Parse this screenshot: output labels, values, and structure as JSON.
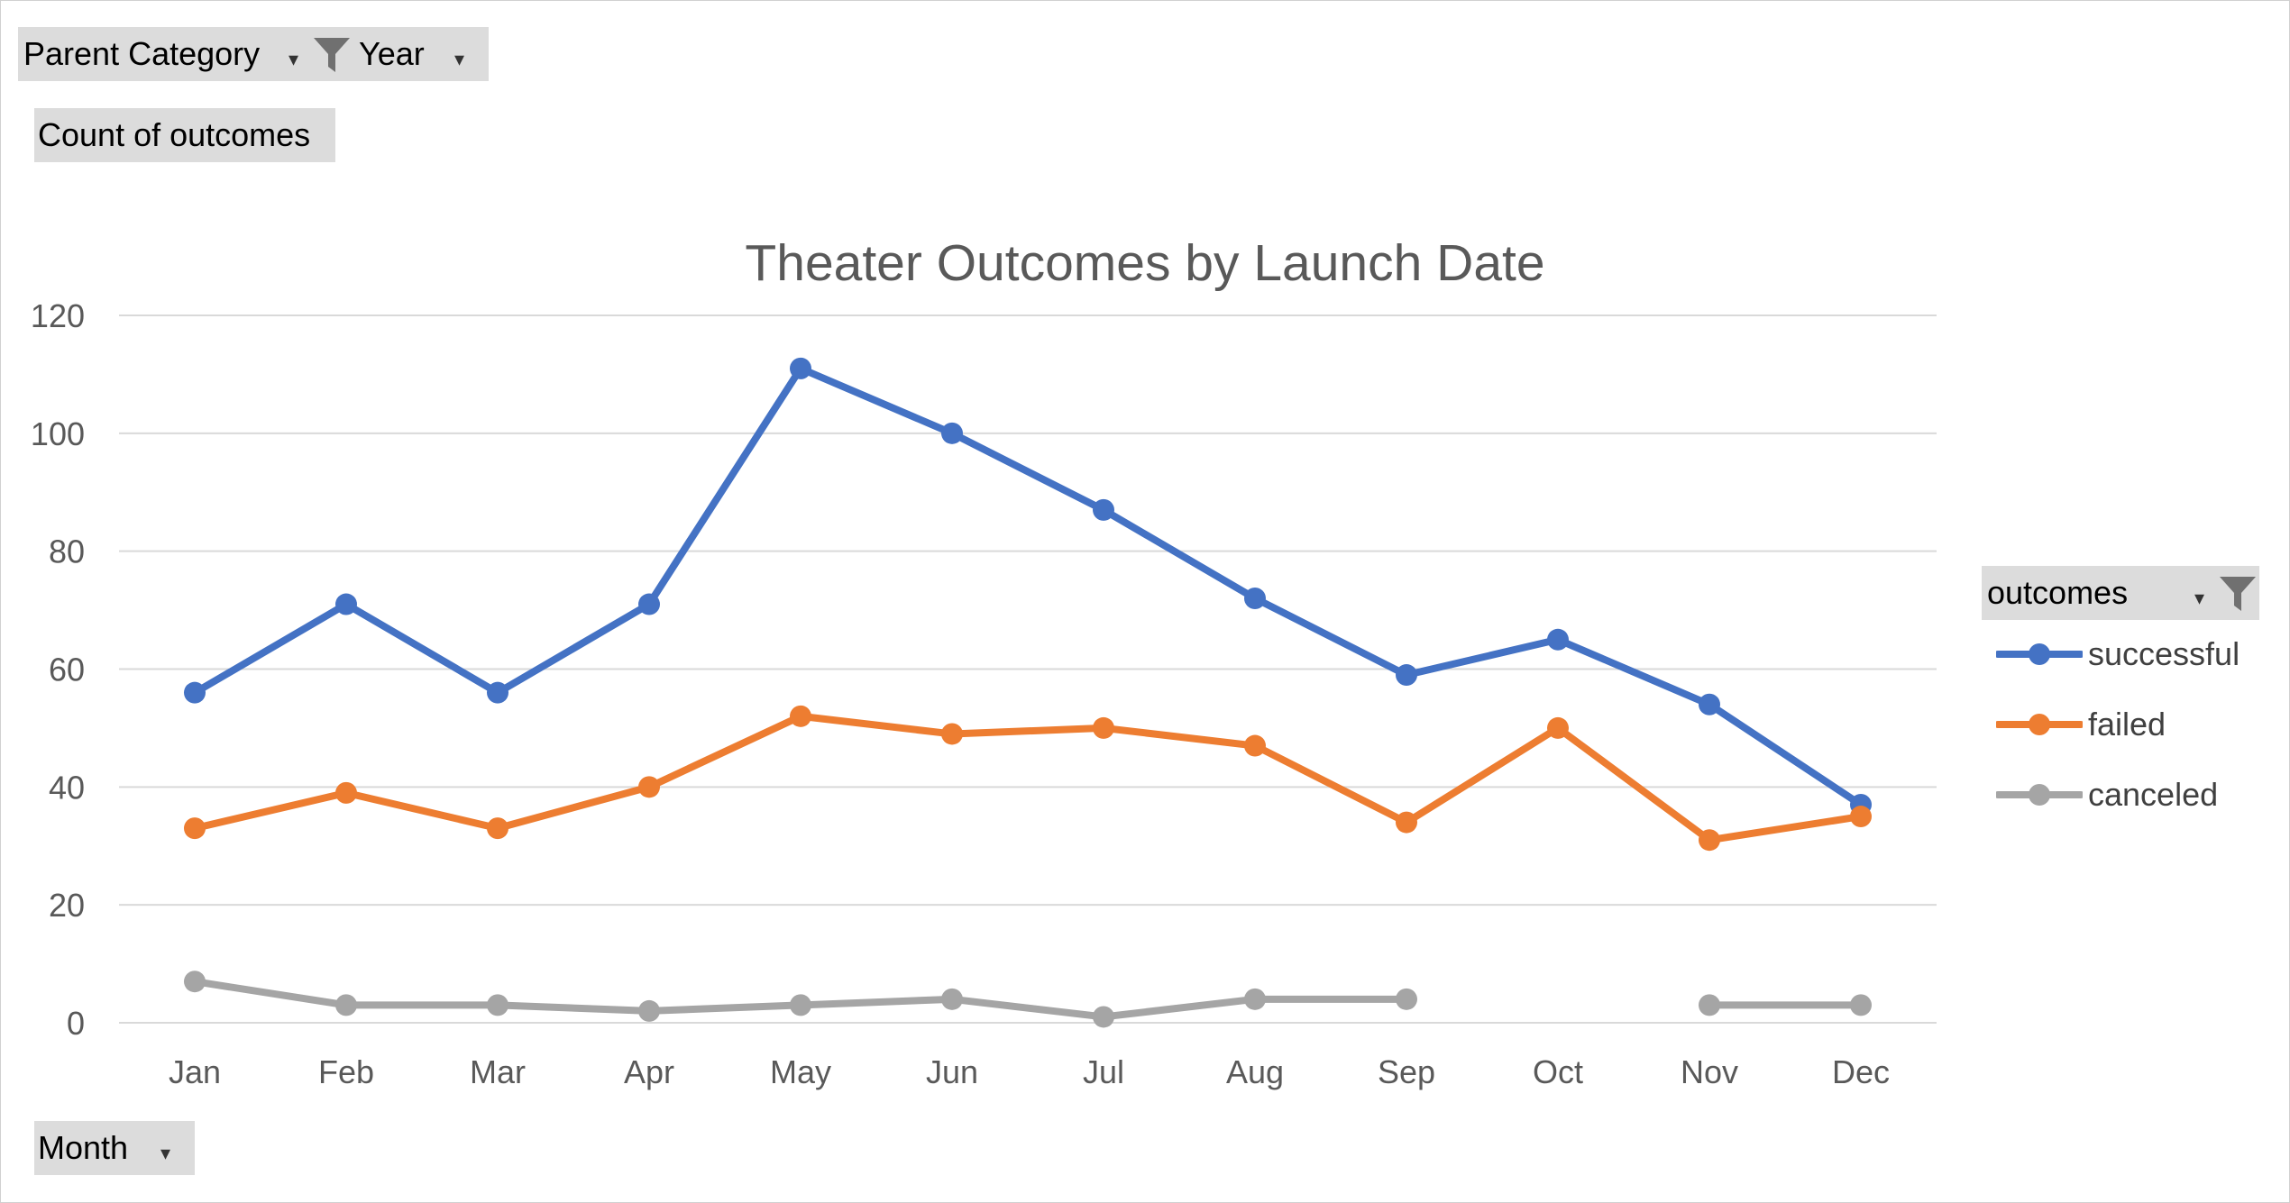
{
  "filters": {
    "parent_category": {
      "label": "Parent Category",
      "filtered": true
    },
    "year": {
      "label": "Year"
    },
    "values_field": {
      "label": "Count of outcomes"
    },
    "axis_field": {
      "label": "Month"
    },
    "legend_field": {
      "label": "outcomes",
      "filtered": true
    }
  },
  "icons": {
    "dropdown": "chevron-down-icon",
    "filter": "funnel-icon"
  },
  "chart_data": {
    "type": "line",
    "title": "Theater Outcomes by Launch Date",
    "categories": [
      "Jan",
      "Feb",
      "Mar",
      "Apr",
      "May",
      "Jun",
      "Jul",
      "Aug",
      "Sep",
      "Oct",
      "Nov",
      "Dec"
    ],
    "ylim": [
      0,
      120
    ],
    "yticks": [
      "0",
      "20",
      "40",
      "60",
      "80",
      "100",
      "120"
    ],
    "grid": true,
    "legend_position": "right",
    "series": [
      {
        "name": "successful",
        "color": "#4472C4",
        "values": [
          56,
          71,
          56,
          71,
          111,
          100,
          87,
          72,
          59,
          65,
          54,
          37
        ]
      },
      {
        "name": "failed",
        "color": "#ED7D31",
        "values": [
          33,
          39,
          33,
          40,
          52,
          49,
          50,
          47,
          34,
          50,
          31,
          35
        ]
      },
      {
        "name": "canceled",
        "color": "#A5A5A5",
        "values": [
          7,
          3,
          3,
          2,
          3,
          4,
          1,
          4,
          4,
          null,
          3,
          3
        ]
      }
    ]
  }
}
